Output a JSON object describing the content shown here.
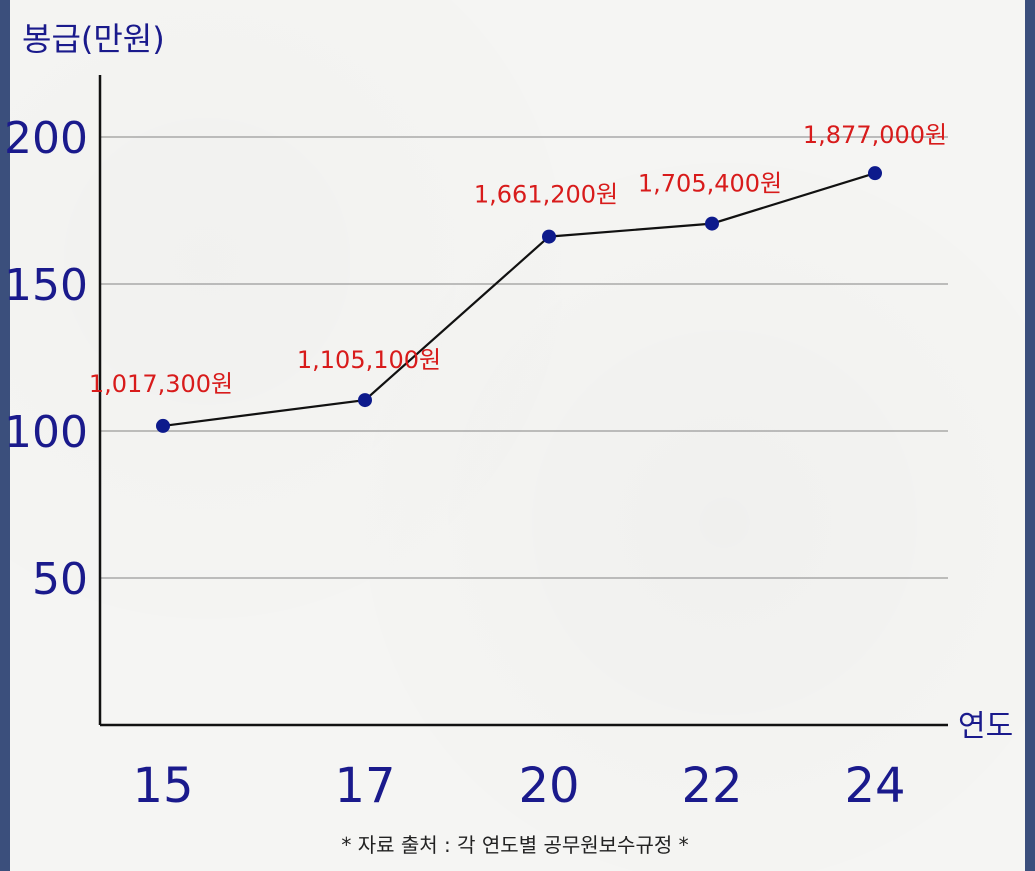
{
  "chart_data": {
    "type": "line",
    "title": "",
    "ylabel": "봉급(만원)",
    "xlabel": "연도",
    "categories": [
      "15",
      "17",
      "20",
      "22",
      "24"
    ],
    "values": [
      101.73,
      110.51,
      166.12,
      170.54,
      187.7
    ],
    "data_labels": [
      "1,017,300원",
      "1,105,100원",
      "1,661,200원",
      "1,705,400원",
      "1,877,000원"
    ],
    "yticks": [
      50,
      100,
      150,
      200
    ],
    "ylim": [
      0,
      220
    ],
    "grid": true,
    "line_color": "#111111",
    "marker_color": "#0d1a8c",
    "label_color": "#d81b1b"
  },
  "source_note": "* 자료 출처 : 각 연도별 공무원보수규정 *"
}
